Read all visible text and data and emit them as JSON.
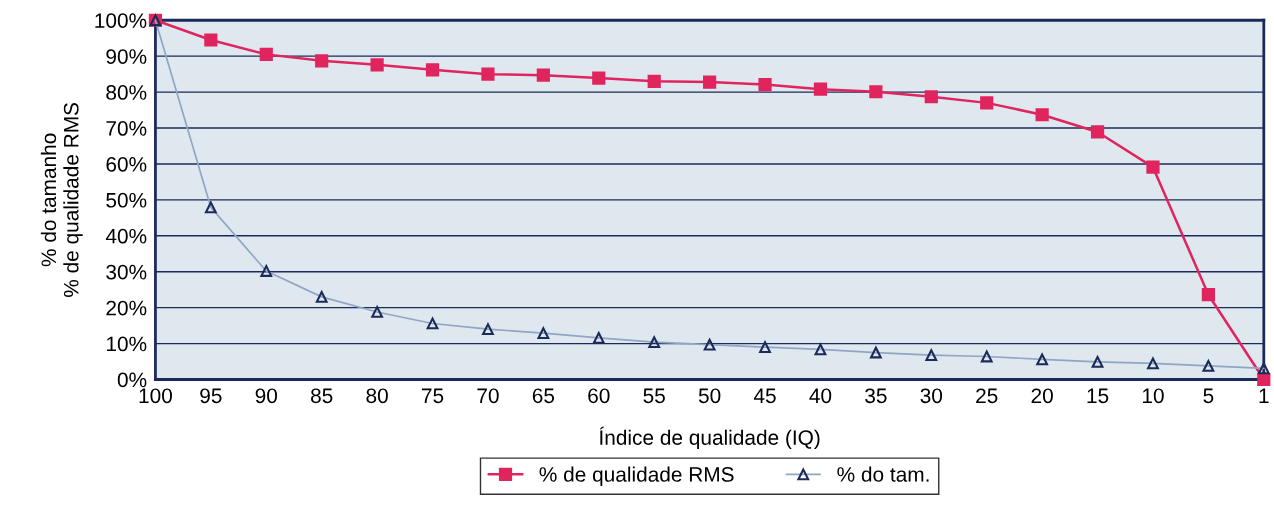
{
  "chart_data": {
    "type": "line",
    "xlabel": "Índice de qualidade (IQ)",
    "ylabel": "% do tamanho\n% de qualidade RMS",
    "categories": [
      "100",
      "95",
      "90",
      "85",
      "80",
      "75",
      "70",
      "65",
      "60",
      "55",
      "50",
      "45",
      "40",
      "35",
      "30",
      "25",
      "20",
      "15",
      "10",
      "5",
      "1"
    ],
    "series": [
      {
        "name": "% de qualidade RMS",
        "color": "#e0245e",
        "marker": "square",
        "values": [
          100,
          94.5,
          90.5,
          88.7,
          87.6,
          86.2,
          85.0,
          84.7,
          83.9,
          83.0,
          82.8,
          82.1,
          80.8,
          80.1,
          78.7,
          77.0,
          73.7,
          68.9,
          59.1,
          23.6,
          0
        ]
      },
      {
        "name": "% do tam.",
        "color": "#8fa6c4",
        "marker": "triangle",
        "values": [
          100,
          47.9,
          30.2,
          23.0,
          18.8,
          15.6,
          14.0,
          12.9,
          11.6,
          10.4,
          9.7,
          9.0,
          8.4,
          7.5,
          6.8,
          6.4,
          5.6,
          4.9,
          4.5,
          3.8,
          3.1
        ]
      }
    ],
    "ylim": [
      0,
      100
    ],
    "yticks": [
      {
        "value": 0,
        "label": "0%"
      },
      {
        "value": 10,
        "label": "10%"
      },
      {
        "value": 20,
        "label": "20%"
      },
      {
        "value": 30,
        "label": "30%"
      },
      {
        "value": 40,
        "label": "40%"
      },
      {
        "value": 50,
        "label": "50%"
      },
      {
        "value": 60,
        "label": "60%"
      },
      {
        "value": 70,
        "label": "70%"
      },
      {
        "value": 80,
        "label": "80%"
      },
      {
        "value": 90,
        "label": "90%"
      },
      {
        "value": 100,
        "label": "100%"
      }
    ],
    "grid": "y",
    "legend": "bottom",
    "line_style": "solid"
  }
}
